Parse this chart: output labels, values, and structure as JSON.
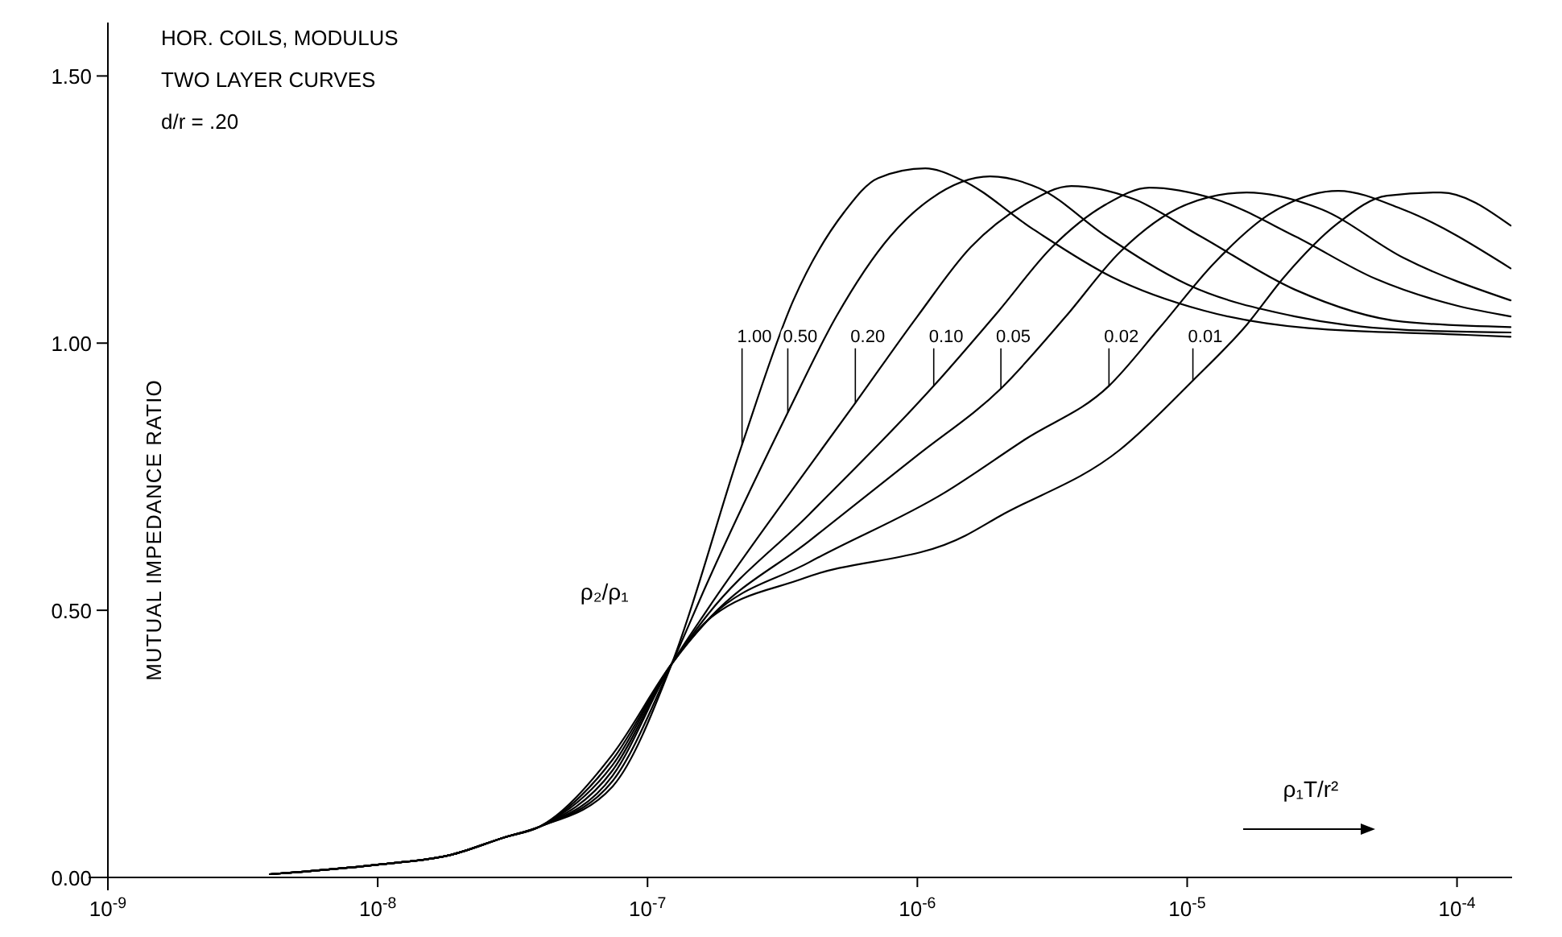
{
  "chart_data": {
    "type": "line",
    "title": "HOR. COILS, MODULUS",
    "subtitle": "TWO LAYER CURVES",
    "xlabel": "ρ₁T/r²",
    "ylabel": "MUTUAL IMPEDANCE RATIO",
    "legend_title": "ρ₂/ρ₁",
    "log": "x",
    "xlim": [
      1e-09,
      0.00016
    ],
    "ylim": [
      0,
      1.6
    ],
    "xticks": [
      {
        "value": 1e-09,
        "label": "10$^{-9}$"
      },
      {
        "value": 1e-08,
        "label": "10$^{-8}$"
      },
      {
        "value": 1e-07,
        "label": "10$^{-7}$"
      },
      {
        "value": 1e-06,
        "label": "10$^{-6}$"
      },
      {
        "value": 1e-05,
        "label": "10$^{-5}$"
      },
      {
        "value": 0.0001,
        "label": "10$^{-4}$"
      }
    ],
    "yticks": [
      {
        "value": 0,
        "label": "0.00"
      },
      {
        "value": 0.5,
        "label": "0.50"
      },
      {
        "value": 1,
        "label": "1.00"
      },
      {
        "value": 1.5,
        "label": "1.50"
      }
    ],
    "annotations": [
      "d/r = .20",
      {
        "text": "1.00",
        "x": 2.24e-07,
        "y": 0.81
      },
      {
        "text": "0.50",
        "x": 3.31e-07,
        "y": 0.87
      },
      {
        "text": "0.20",
        "x": 5.89e-07,
        "y": 0.888
      },
      {
        "text": "0.10",
        "x": 1.15e-06,
        "y": 0.92
      },
      {
        "text": "0.05",
        "x": 2.04e-06,
        "y": 0.915
      },
      {
        "text": "0.02",
        "x": 5.13e-06,
        "y": 0.92
      },
      {
        "text": "0.01",
        "x": 1.05e-05,
        "y": 0.93
      }
    ],
    "series": [
      {
        "color": "#000000",
        "x": [
          3.98e-09,
          1e-08,
          1.86e-08,
          2.95e-08,
          3.98e-08,
          7.41e-08,
          1.23e-07,
          2.24e-07,
          3.47e-07,
          5.37e-07,
          7.16e-07,
          1.07e-06,
          1.45e-06,
          2.69e-06,
          5.25e-06,
          1.15e-05,
          2.82e-05,
          0.000102,
          0.000158
        ],
        "values": [
          0.006,
          0.024,
          0.042,
          0.075,
          0.095,
          0.17,
          0.4,
          0.81,
          1.08,
          1.246,
          1.309,
          1.327,
          1.306,
          1.213,
          1.124,
          1.061,
          1.028,
          1.016,
          1.012
        ]
      },
      {
        "color": "#000000",
        "x": [
          3.98e-09,
          1e-08,
          1.86e-08,
          2.95e-08,
          3.98e-08,
          7.41e-08,
          1.23e-07,
          1.66e-07,
          3.31e-07,
          5.01e-07,
          7.94e-07,
          1.12e-06,
          1.86e-06,
          2.82e-06,
          5.01e-06,
          1e-05,
          2.51e-05,
          6.31e-05,
          0.000158
        ],
        "values": [
          0.006,
          0.024,
          0.042,
          0.075,
          0.095,
          0.18,
          0.4,
          0.55,
          0.87,
          1.05,
          1.2,
          1.27,
          1.312,
          1.29,
          1.2,
          1.11,
          1.05,
          1.025,
          1.02
        ]
      },
      {
        "color": "#000000",
        "x": [
          3.98e-09,
          1e-08,
          1.86e-08,
          2.95e-08,
          3.98e-08,
          7.41e-08,
          1.23e-07,
          1.66e-07,
          3.16e-07,
          5.89e-07,
          1e-06,
          1.58e-06,
          2.51e-06,
          3.72e-06,
          6.31e-06,
          1.12e-05,
          2.51e-05,
          6.31e-05,
          0.000158
        ],
        "values": [
          0.006,
          0.024,
          0.042,
          0.075,
          0.095,
          0.19,
          0.4,
          0.5,
          0.7,
          0.888,
          1.05,
          1.18,
          1.26,
          1.294,
          1.27,
          1.2,
          1.1,
          1.04,
          1.03
        ]
      },
      {
        "color": "#000000",
        "x": [
          3.98e-09,
          1e-08,
          1.86e-08,
          2.95e-08,
          3.98e-08,
          7.41e-08,
          1.23e-07,
          1.66e-07,
          3.98e-07,
          1.15e-06,
          2e-06,
          3.16e-06,
          5.01e-06,
          7.24e-06,
          1.26e-05,
          2.51e-05,
          5.01e-05,
          0.0001,
          0.000158
        ],
        "values": [
          0.006,
          0.024,
          0.042,
          0.075,
          0.095,
          0.2,
          0.4,
          0.49,
          0.68,
          0.92,
          1.06,
          1.18,
          1.26,
          1.291,
          1.27,
          1.2,
          1.12,
          1.07,
          1.05
        ]
      },
      {
        "color": "#000000",
        "x": [
          3.98e-09,
          1e-08,
          1.86e-08,
          2.95e-08,
          3.98e-08,
          7.41e-08,
          1.23e-07,
          1.66e-07,
          3.98e-07,
          1e-06,
          2.04e-06,
          3.55e-06,
          5.62e-06,
          1e-05,
          1.66e-05,
          3.16e-05,
          6.31e-05,
          0.000158
        ],
        "values": [
          0.006,
          0.024,
          0.042,
          0.075,
          0.095,
          0.21,
          0.4,
          0.48,
          0.63,
          0.79,
          0.915,
          1.05,
          1.17,
          1.26,
          1.282,
          1.25,
          1.16,
          1.08
        ]
      },
      {
        "color": "#000000",
        "x": [
          3.98e-09,
          1e-08,
          1.86e-08,
          2.95e-08,
          3.98e-08,
          7.41e-08,
          1.23e-07,
          1.66e-07,
          3.98e-07,
          1.26e-06,
          2.51e-06,
          5.13e-06,
          7.94e-06,
          1.26e-05,
          2e-05,
          3.63e-05,
          6.31e-05,
          0.000158
        ],
        "values": [
          0.006,
          0.024,
          0.042,
          0.075,
          0.095,
          0.22,
          0.4,
          0.48,
          0.59,
          0.72,
          0.82,
          0.92,
          1.03,
          1.15,
          1.24,
          1.285,
          1.25,
          1.14
        ]
      },
      {
        "color": "#000000",
        "x": [
          3.98e-09,
          1e-08,
          1.86e-08,
          2.95e-08,
          3.98e-08,
          7.41e-08,
          1.23e-07,
          1.66e-07,
          3.8e-07,
          1.51e-06,
          2e-06,
          5.62e-06,
          1.05e-05,
          1.66e-05,
          2.29e-05,
          3.63e-05,
          5.5e-05,
          8.71e-05,
          0.000158
        ],
        "values": [
          0.006,
          0.024,
          0.042,
          0.075,
          0.095,
          0.23,
          0.4,
          0.48,
          0.56,
          0.64,
          0.675,
          0.8,
          0.93,
          1.034,
          1.124,
          1.225,
          1.276,
          1.282,
          1.22
        ]
      }
    ]
  }
}
